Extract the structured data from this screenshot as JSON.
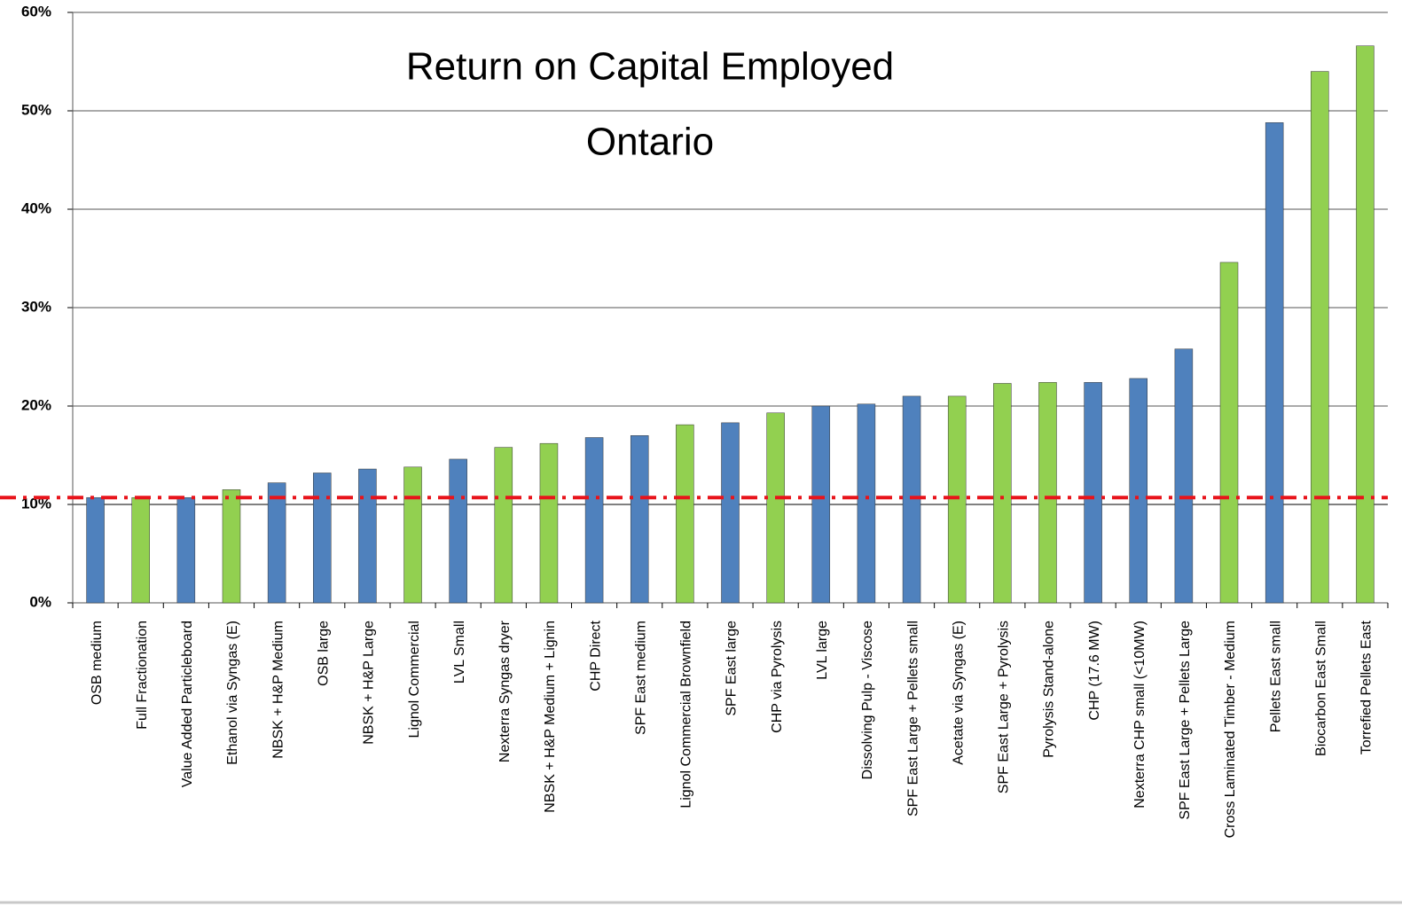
{
  "chart_data": {
    "type": "bar",
    "title": "Return on Capital Employed",
    "subtitle": "Ontario",
    "categories": [
      "OSB medium",
      "Full Fractionation",
      "Value Added Particleboard",
      "Ethanol via Syngas (E)",
      "NBSK + H&P Medium",
      "OSB large",
      "NBSK + H&P Large",
      "Lignol Commercial",
      "LVL Small",
      "Nexterra Syngas dryer",
      "NBSK + H&P Medium + Lignin",
      "CHP Direct",
      "SPF East medium",
      "Lignol Commercial Brownfield",
      "SPF East large",
      "CHP via Pyrolysis",
      "LVL large",
      "Dissolving Pulp - Viscose",
      "SPF East Large + Pellets small",
      "Acetate via Syngas (E)",
      "SPF East Large + Pyrolysis",
      "Pyrolysis Stand-alone",
      "CHP (17.6 MW)",
      "Nexterra CHP small (<10MW)",
      "SPF East Large + Pellets Large",
      "Cross Laminated Timber - Medium",
      "Pellets East small",
      "Biocarbon East Small",
      "Torrefied Pellets East"
    ],
    "values": [
      10.7,
      10.7,
      10.7,
      11.5,
      12.2,
      13.2,
      13.6,
      13.8,
      14.6,
      15.8,
      16.2,
      16.8,
      17.0,
      18.1,
      18.3,
      19.3,
      20.0,
      20.2,
      21.0,
      21.0,
      22.3,
      22.4,
      22.4,
      22.8,
      25.8,
      34.6,
      48.8,
      54.0,
      56.6
    ],
    "colors": [
      "#4f81bd",
      "#92d050",
      "#4f81bd",
      "#92d050",
      "#4f81bd",
      "#4f81bd",
      "#4f81bd",
      "#92d050",
      "#4f81bd",
      "#92d050",
      "#92d050",
      "#4f81bd",
      "#4f81bd",
      "#92d050",
      "#4f81bd",
      "#92d050",
      "#4f81bd",
      "#4f81bd",
      "#4f81bd",
      "#92d050",
      "#92d050",
      "#92d050",
      "#4f81bd",
      "#4f81bd",
      "#4f81bd",
      "#92d050",
      "#4f81bd",
      "#92d050",
      "#92d050"
    ],
    "ylim": [
      0,
      60
    ],
    "yticks": [
      {
        "value": 0,
        "label": "0%"
      },
      {
        "value": 10,
        "label": "10%"
      },
      {
        "value": 20,
        "label": "20%"
      },
      {
        "value": 30,
        "label": "30%"
      },
      {
        "value": 40,
        "label": "40%"
      },
      {
        "value": 50,
        "label": "50%"
      },
      {
        "value": 60,
        "label": "60%"
      }
    ],
    "grid": true,
    "reference_line": {
      "value": 10.7,
      "color": "#e8141b"
    }
  }
}
